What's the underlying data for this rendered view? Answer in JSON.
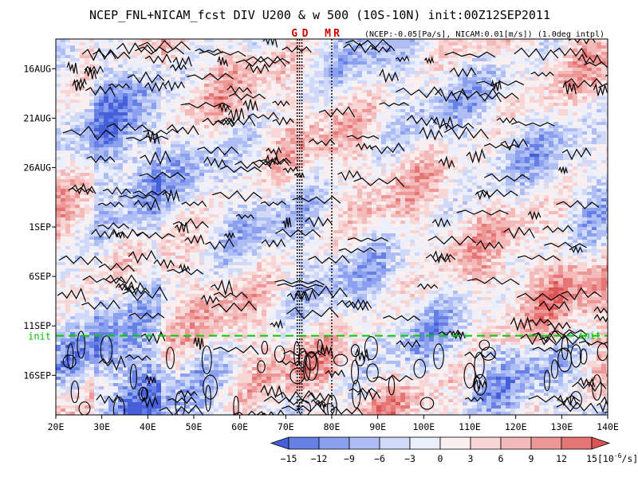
{
  "chart_data": {
    "type": "heatmap",
    "title": "NCEP_FNL+NICAM_fcst DIV U200 & w 500 (10S-10N) init:00Z12SEP2011",
    "subtitle": "(NCEP:-0.05[Pa/s], NICAM:0.01[m/s]) (1.0deg intpl)",
    "x": {
      "range": [
        20,
        140
      ],
      "tick_values": [
        20,
        30,
        40,
        50,
        60,
        70,
        80,
        90,
        100,
        110,
        120,
        130,
        140
      ],
      "tick_labels": [
        "20E",
        "30E",
        "40E",
        "50E",
        "60E",
        "70E",
        "80E",
        "90E",
        "100E",
        "110E",
        "120E",
        "130E",
        "140E"
      ]
    },
    "y": {
      "start_date": "2011-08-13",
      "end_date": "2011-09-20",
      "tick_labels": [
        "16AUG",
        "21AUG",
        "26AUG",
        "1SEP",
        "6SEP",
        "11SEP",
        "16SEP"
      ],
      "tick_dates": [
        "2011-08-16",
        "2011-08-21",
        "2011-08-26",
        "2011-09-01",
        "2011-09-06",
        "2011-09-11",
        "2011-09-16"
      ]
    },
    "init_line": {
      "label": "init",
      "date": "2011-09-12",
      "color": "#00cc00"
    },
    "markers": [
      {
        "label": "G",
        "lons": [
          72.5,
          73.0
        ]
      },
      {
        "label": "D",
        "lons": [
          73.5
        ]
      },
      {
        "label": "M",
        "lons": [
          80
        ]
      },
      {
        "label": "R",
        "lons": [
          80
        ]
      }
    ],
    "colorbar": {
      "labels": [
        "-15",
        "-12",
        "-9",
        "-6",
        "-3",
        "0",
        "3",
        "6",
        "9",
        "12",
        "15"
      ],
      "units": "[10",
      "units_exp": "-6",
      "units_tail": "/s]",
      "colors": [
        "#4560d8",
        "#6680e6",
        "#8ba0ee",
        "#aebef4",
        "#d0daf8",
        "#ebeffb",
        "#fbeeee",
        "#f8d6d6",
        "#f4b9b9",
        "#ee9797",
        "#e67575",
        "#dc5555"
      ]
    }
  }
}
